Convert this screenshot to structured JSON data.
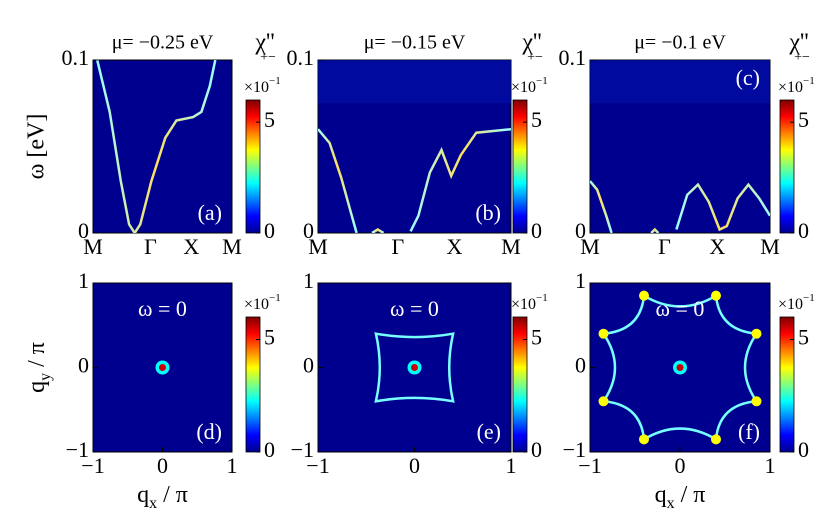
{
  "panels": [
    {
      "type": "heatmap",
      "title": "μ= −0.25 eV",
      "label": "(a)",
      "xticks": [
        "M",
        "Γ",
        "X",
        "M"
      ],
      "ylim": [
        0,
        0.1
      ],
      "yticks": [
        0,
        0.1
      ],
      "ylabel": "ω [eV]",
      "cbar": {
        "clim": [
          0,
          6
        ],
        "ticks": [
          0,
          5
        ],
        "scale": "×10",
        "scale_exp": "−1"
      },
      "chi": "χ''",
      "chi_sub": "+−"
    },
    {
      "type": "heatmap",
      "title": "μ= −0.15 eV",
      "label": "(b)",
      "xticks": [
        "M",
        "Γ",
        "X",
        "M"
      ],
      "ylim": [
        0,
        0.1
      ],
      "yticks": [
        0,
        0.1
      ],
      "cbar": {
        "clim": [
          0,
          6
        ],
        "ticks": [
          0,
          5
        ],
        "scale": "×10",
        "scale_exp": "−1"
      },
      "chi": "χ''",
      "chi_sub": "+−"
    },
    {
      "type": "heatmap",
      "title": "μ= −0.1 eV",
      "label": "(c)",
      "xticks": [
        "M",
        "Γ",
        "X",
        "M"
      ],
      "ylim": [
        0,
        0.1
      ],
      "yticks": [
        0,
        0.1
      ],
      "cbar": {
        "clim": [
          0,
          6
        ],
        "ticks": [
          0,
          5
        ],
        "scale": "×10",
        "scale_exp": "−1"
      },
      "chi": "χ''",
      "chi_sub": "+−"
    },
    {
      "type": "heatmap",
      "label": "(d)",
      "annotation": "ω = 0",
      "xlim": [
        -1,
        1
      ],
      "xticks": [
        {
          "value": -1,
          "label": "−1"
        },
        0,
        1
      ],
      "ylim": [
        -1,
        1
      ],
      "yticks": [
        {
          "value": -1,
          "label": "−1"
        },
        0,
        1
      ],
      "xlabel": {
        "text": "q",
        "sub": "x",
        "suffix": " / π"
      },
      "ylabel": {
        "text": "q",
        "sub": "y",
        "suffix": " / π"
      },
      "cbar": {
        "clim": [
          0,
          6
        ],
        "ticks": [
          0,
          5
        ],
        "scale": "×10",
        "scale_exp": "−1"
      }
    },
    {
      "type": "heatmap",
      "label": "(e)",
      "annotation": "ω = 0",
      "xlim": [
        -1,
        1
      ],
      "xticks": [
        {
          "value": -1,
          "label": "−1"
        },
        0,
        1
      ],
      "ylim": [
        -1,
        1
      ],
      "yticks": [
        {
          "value": -1,
          "label": "−1"
        },
        0,
        1
      ],
      "cbar": {
        "clim": [
          0,
          6
        ],
        "ticks": [
          0,
          5
        ],
        "scale": "×10",
        "scale_exp": "−1"
      }
    },
    {
      "type": "heatmap",
      "label": "(f)",
      "annotation": "ω = 0",
      "xlim": [
        -1,
        1
      ],
      "xticks": [
        {
          "value": -1,
          "label": "−1"
        },
        0,
        1
      ],
      "ylim": [
        -1,
        1
      ],
      "yticks": [
        {
          "value": -1,
          "label": "−1"
        },
        0,
        1
      ],
      "xlabel": {
        "text": "q",
        "sub": "x",
        "suffix": " / π"
      },
      "cbar": {
        "clim": [
          0,
          6
        ],
        "ticks": [
          0,
          5
        ],
        "scale": "×10",
        "scale_exp": "−1"
      }
    }
  ]
}
